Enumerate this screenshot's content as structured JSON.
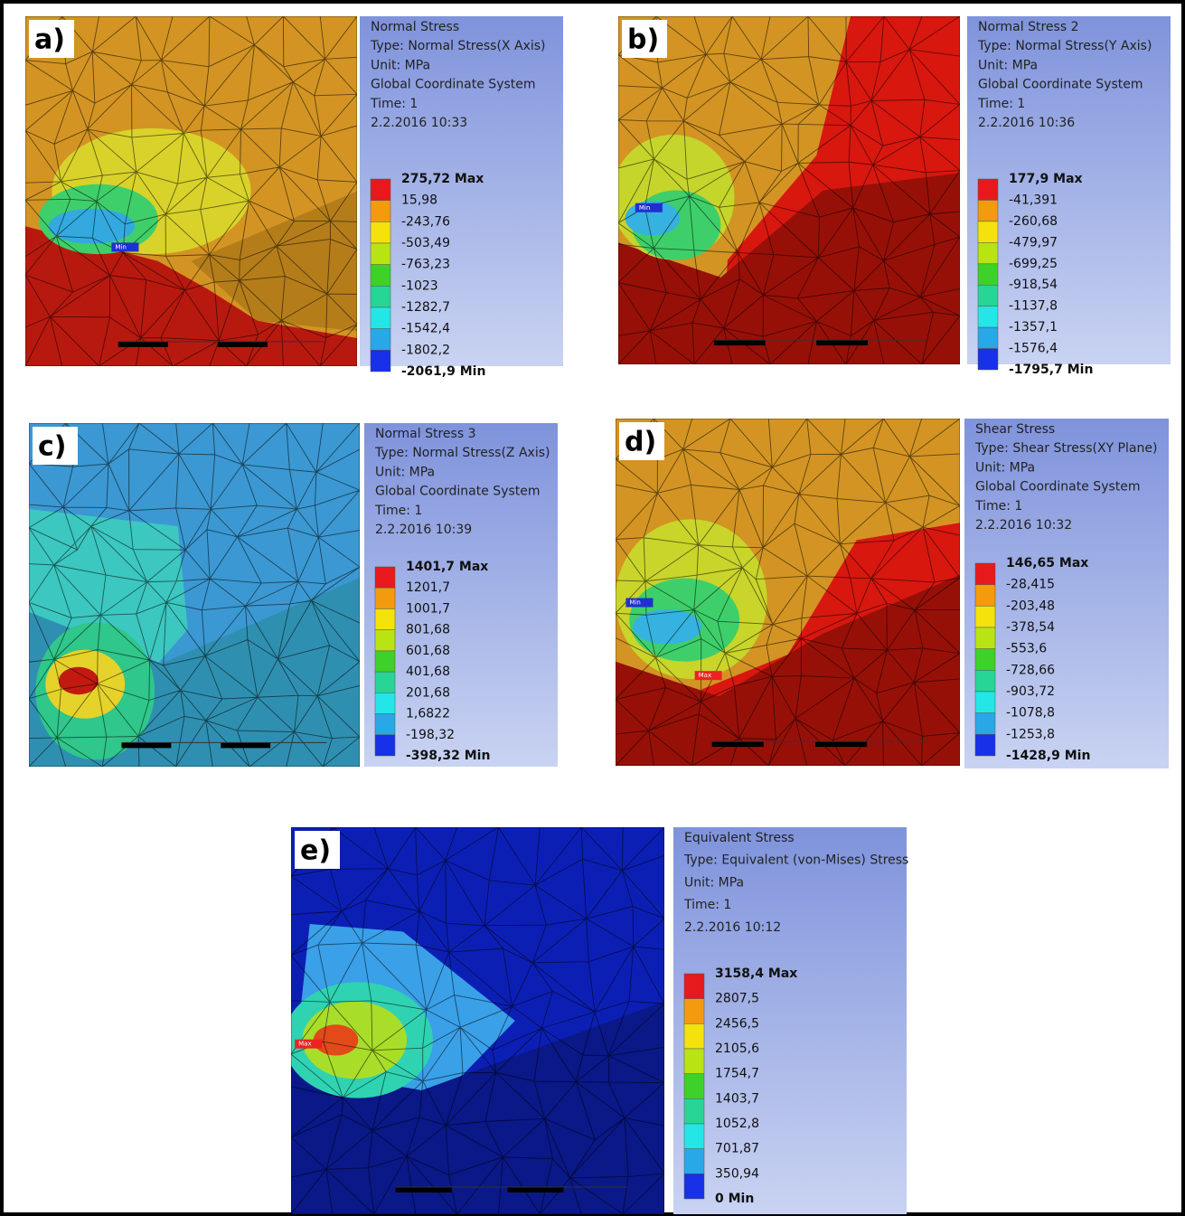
{
  "panels": [
    {
      "label": "a)",
      "title_lines": [
        "Normal Stress",
        "Type: Normal Stress(X Axis)",
        "Unit: MPa",
        "Global Coordinate System",
        "Time: 1",
        "2.2.2016 10:33"
      ],
      "scale": [
        "275,72 Max",
        "15,98",
        "-243,76",
        "-503,49",
        "-763,23",
        "-1023",
        "-1282,7",
        "-1542,4",
        "-1802,2",
        "-2061,9 Min"
      ],
      "probes": [
        "Min"
      ]
    },
    {
      "label": "b)",
      "title_lines": [
        "Normal Stress 2",
        "Type: Normal Stress(Y Axis)",
        "Unit: MPa",
        "Global Coordinate System",
        "Time: 1",
        "2.2.2016 10:36"
      ],
      "scale": [
        "177,9 Max",
        "-41,391",
        "-260,68",
        "-479,97",
        "-699,25",
        "-918,54",
        "-1137,8",
        "-1357,1",
        "-1576,4",
        "-1795,7 Min"
      ],
      "probes": [
        "Min"
      ]
    },
    {
      "label": "c)",
      "title_lines": [
        "Normal Stress 3",
        "Type: Normal Stress(Z Axis)",
        "Unit: MPa",
        "Global Coordinate System",
        "Time: 1",
        "2.2.2016 10:39"
      ],
      "scale": [
        "1401,7 Max",
        "1201,7",
        "1001,7",
        "801,68",
        "601,68",
        "401,68",
        "201,68",
        "1,6822",
        "-198,32",
        "-398,32 Min"
      ],
      "probes": []
    },
    {
      "label": "d)",
      "title_lines": [
        "Shear Stress",
        "Type: Shear Stress(XY Plane)",
        "Unit: MPa",
        "Global Coordinate System",
        "Time: 1",
        "2.2.2016 10:32"
      ],
      "scale": [
        "146,65 Max",
        "-28,415",
        "-203,48",
        "-378,54",
        "-553,6",
        "-728,66",
        "-903,72",
        "-1078,8",
        "-1253,8",
        "-1428,9 Min"
      ],
      "probes": [
        "Min",
        "Max"
      ]
    },
    {
      "label": "e)",
      "title_lines": [
        "Equivalent Stress",
        "Type: Equivalent (von-Mises) Stress",
        "Unit: MPa",
        "Time: 1",
        "2.2.2016 10:12"
      ],
      "scale": [
        "3158,4 Max",
        "2807,5",
        "2456,5",
        "2105,6",
        "1754,7",
        "1403,7",
        "1052,8",
        "701,87",
        "350,94",
        "0 Min"
      ],
      "probes": [
        "Max"
      ]
    }
  ]
}
